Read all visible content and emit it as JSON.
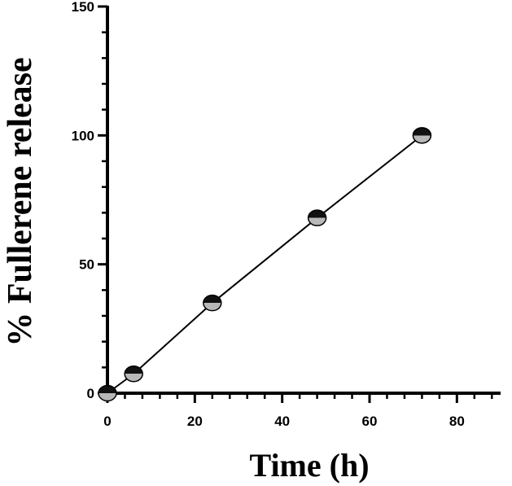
{
  "chart_data": {
    "type": "line",
    "title": "",
    "xlabel": "Time (h)",
    "ylabel": "% Fullerene release",
    "xlim": [
      0,
      90
    ],
    "ylim": [
      0,
      150
    ],
    "xticks": [
      "0",
      "20",
      "40",
      "60",
      "80"
    ],
    "yticks": [
      "0",
      "50",
      "100",
      "150"
    ],
    "grid": false,
    "legend": "none",
    "series": [
      {
        "x": [
          0,
          6,
          24,
          48,
          72
        ],
        "y": [
          0,
          7.5,
          35,
          68,
          100
        ]
      }
    ],
    "colors": {
      "axis": "#000000",
      "line": "#000000",
      "marker_top": "#111111",
      "marker_bottom": "#b8b8b8"
    }
  }
}
